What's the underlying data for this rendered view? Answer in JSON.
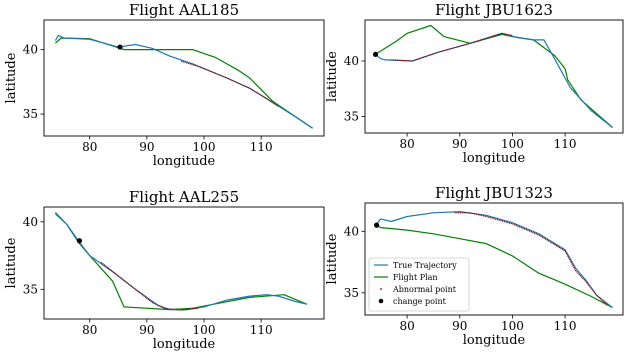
{
  "colors": {
    "true_trajectory": "#1f77b4",
    "flight_plan": "#008000",
    "abnormal_point": "#8b0000",
    "change_point": "#000000"
  },
  "legend": {
    "placement": "lower-left",
    "entries": [
      "True Trajectory",
      "Flight Plan",
      "Abnormal point",
      "change point"
    ]
  },
  "chart_data": [
    {
      "type": "line",
      "title": "Flight AAL185",
      "xlabel": "longitude",
      "ylabel": "latitude",
      "xlim": [
        72,
        121
      ],
      "ylim": [
        33.3,
        42.3
      ],
      "xticks": [
        80,
        90,
        100,
        110
      ],
      "yticks": [
        35,
        40
      ],
      "legend": false,
      "true_trajectory": [
        [
          74,
          40.7
        ],
        [
          74.5,
          41.1
        ],
        [
          75.5,
          40.9
        ],
        [
          80,
          40.8
        ],
        [
          85,
          40.2
        ],
        [
          88,
          40.4
        ],
        [
          91,
          40.1
        ],
        [
          94,
          39.5
        ],
        [
          98,
          38.9
        ],
        [
          104,
          37.8
        ],
        [
          108,
          37.0
        ],
        [
          112,
          35.9
        ],
        [
          116,
          34.8
        ],
        [
          119,
          33.9
        ]
      ],
      "flight_plan": [
        [
          74,
          40.5
        ],
        [
          75,
          40.9
        ],
        [
          80,
          40.85
        ],
        [
          86,
          40.0
        ],
        [
          90,
          40.0
        ],
        [
          98,
          40.0
        ],
        [
          102,
          39.4
        ],
        [
          106,
          38.4
        ],
        [
          108,
          37.8
        ],
        [
          112,
          36.0
        ],
        [
          119,
          33.9
        ]
      ],
      "abnormal_segment": [
        [
          96,
          39.1
        ],
        [
          99,
          38.7
        ],
        [
          104,
          37.8
        ],
        [
          108,
          37.0
        ],
        [
          111,
          36.2
        ],
        [
          113,
          35.6
        ]
      ],
      "change_point": [
        85.3,
        40.2
      ]
    },
    {
      "type": "line",
      "title": "Flight JBU1623",
      "xlabel": "longitude",
      "ylabel": "latitude",
      "xlim": [
        72,
        121
      ],
      "ylim": [
        33.5,
        43.7
      ],
      "xticks": [
        80,
        90,
        100,
        110
      ],
      "yticks": [
        35,
        40
      ],
      "legend": false,
      "true_trajectory": [
        [
          74,
          40.6
        ],
        [
          75,
          40.2
        ],
        [
          76,
          40.1
        ],
        [
          81,
          40.0
        ],
        [
          86,
          40.8
        ],
        [
          92,
          41.6
        ],
        [
          98,
          42.5
        ],
        [
          101,
          42.1
        ],
        [
          104,
          41.9
        ],
        [
          106,
          41.9
        ],
        [
          108,
          40.2
        ],
        [
          111,
          37.6
        ],
        [
          115,
          35.5
        ],
        [
          119,
          34.0
        ]
      ],
      "flight_plan": [
        [
          74,
          40.6
        ],
        [
          78,
          41.8
        ],
        [
          80,
          42.5
        ],
        [
          84.5,
          43.2
        ],
        [
          87,
          42.2
        ],
        [
          92,
          41.6
        ],
        [
          98,
          42.4
        ],
        [
          100,
          42.2
        ],
        [
          104,
          41.9
        ],
        [
          108,
          40.5
        ],
        [
          110,
          39.3
        ],
        [
          110.5,
          38.3
        ],
        [
          113,
          36.5
        ],
        [
          119,
          34.0
        ]
      ],
      "abnormal_segment": [
        [
          77,
          40.1
        ],
        [
          81,
          40.0
        ],
        [
          86,
          40.8
        ],
        [
          92,
          41.6
        ],
        [
          98,
          42.5
        ],
        [
          100,
          42.3
        ]
      ],
      "change_point": [
        74,
        40.6
      ]
    },
    {
      "type": "line",
      "title": "Flight AAL255",
      "xlabel": "longitude",
      "ylabel": "latitude",
      "xlim": [
        72,
        121
      ],
      "ylim": [
        32.8,
        41.1
      ],
      "xticks": [
        80,
        90,
        100,
        110
      ],
      "yticks": [
        35,
        40
      ],
      "legend": false,
      "true_trajectory": [
        [
          74,
          40.7
        ],
        [
          76,
          39.8
        ],
        [
          78,
          38.6
        ],
        [
          80,
          37.5
        ],
        [
          84,
          36.3
        ],
        [
          88,
          35.0
        ],
        [
          92,
          33.8
        ],
        [
          94,
          33.5
        ],
        [
          97,
          33.5
        ],
        [
          100,
          33.7
        ],
        [
          104,
          34.2
        ],
        [
          108,
          34.5
        ],
        [
          111,
          34.6
        ],
        [
          113,
          34.5
        ],
        [
          116,
          34.1
        ],
        [
          118,
          33.9
        ]
      ],
      "flight_plan": [
        [
          74,
          40.6
        ],
        [
          76,
          39.8
        ],
        [
          78,
          38.5
        ],
        [
          80,
          37.5
        ],
        [
          84,
          35.6
        ],
        [
          86,
          33.7
        ],
        [
          94,
          33.5
        ],
        [
          98,
          33.6
        ],
        [
          103,
          34.0
        ],
        [
          108,
          34.4
        ],
        [
          114,
          34.6
        ],
        [
          118,
          33.9
        ]
      ],
      "abnormal_segment": [
        [
          82,
          37.0
        ],
        [
          85,
          36.0
        ],
        [
          88,
          35.0
        ],
        [
          91,
          34.0
        ],
        [
          93,
          33.6
        ],
        [
          96,
          33.45
        ],
        [
          99,
          33.6
        ]
      ],
      "change_point": [
        78.2,
        38.6
      ]
    },
    {
      "type": "line",
      "title": "Flight JBU1323",
      "xlabel": "longitude",
      "ylabel": "latitude",
      "xlim": [
        72,
        121
      ],
      "ylim": [
        33.2,
        42.3
      ],
      "xticks": [
        80,
        90,
        100,
        110
      ],
      "yticks": [
        35,
        40
      ],
      "legend": true,
      "true_trajectory": [
        [
          74,
          40.5
        ],
        [
          75,
          41.0
        ],
        [
          77,
          40.8
        ],
        [
          80,
          41.2
        ],
        [
          85,
          41.5
        ],
        [
          90,
          41.6
        ],
        [
          95,
          41.3
        ],
        [
          100,
          40.7
        ],
        [
          105,
          39.8
        ],
        [
          110,
          38.5
        ],
        [
          112,
          37.0
        ],
        [
          114,
          36.0
        ],
        [
          116,
          34.8
        ],
        [
          119,
          33.8
        ]
      ],
      "flight_plan": [
        [
          74,
          40.5
        ],
        [
          75,
          40.3
        ],
        [
          80,
          40.1
        ],
        [
          85,
          39.8
        ],
        [
          90,
          39.4
        ],
        [
          95,
          39.0
        ],
        [
          100,
          38.0
        ],
        [
          105,
          36.6
        ],
        [
          110,
          35.7
        ],
        [
          115,
          34.7
        ],
        [
          119,
          33.8
        ]
      ],
      "abnormal_segment": [
        [
          89,
          41.5
        ],
        [
          92,
          41.5
        ],
        [
          95,
          41.2
        ],
        [
          100,
          40.6
        ],
        [
          105,
          39.7
        ],
        [
          110,
          38.4
        ],
        [
          112,
          36.8
        ],
        [
          114,
          35.9
        ],
        [
          116,
          34.8
        ],
        [
          118,
          34.0
        ]
      ],
      "change_point": [
        74.2,
        40.5
      ]
    }
  ]
}
